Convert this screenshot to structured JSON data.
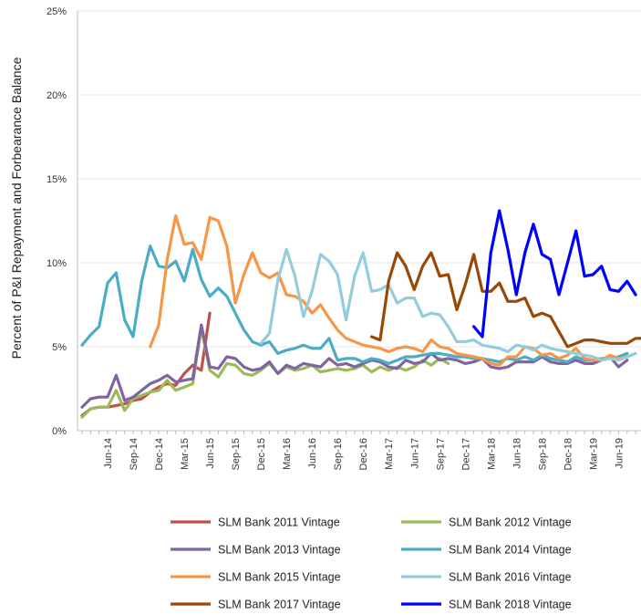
{
  "chart_data": {
    "type": "line",
    "title": "",
    "xlabel": "",
    "ylabel": "Percent of P&I Repayment and Forbearance Balance",
    "ylim": [
      0,
      25
    ],
    "y_ticks": [
      "0%",
      "5%",
      "10%",
      "15%",
      "20%",
      "25%"
    ],
    "x_tick_labels": [
      "Jun-14",
      "Sep-14",
      "Dec-14",
      "Mar-15",
      "Jun-15",
      "Sep-15",
      "Dec-15",
      "Mar-16",
      "Jun-16",
      "Sep-16",
      "Dec-16",
      "Mar-17",
      "Jun-17",
      "Sep-17",
      "Dec-17",
      "Mar-18",
      "Jun-18",
      "Sep-18",
      "Dec-18",
      "Mar-19",
      "Jun-19"
    ],
    "x_range_months": [
      "Mar-14",
      "Aug-19"
    ],
    "grid": true,
    "legend_position": "bottom",
    "series": [
      {
        "name": "SLM Bank 2011 Vintage",
        "color": "#c0504d",
        "start": "Mar-14",
        "values": [
          0.9,
          1.3,
          1.4,
          1.4,
          1.5,
          1.6,
          1.8,
          1.9,
          2.3,
          2.6,
          2.8,
          2.7,
          3.4,
          3.9,
          3.6,
          7.0
        ]
      },
      {
        "name": "SLM Bank 2012 Vintage",
        "color": "#9bbb59",
        "start": "Mar-14",
        "values": [
          0.8,
          1.3,
          1.4,
          1.4,
          2.4,
          1.2,
          1.9,
          2.1,
          2.3,
          2.4,
          3.0,
          2.4,
          2.6,
          2.8,
          6.1,
          3.6,
          3.2,
          4.0,
          3.9,
          3.4,
          3.3,
          3.6,
          4.0,
          3.4,
          3.8,
          3.6,
          3.7,
          3.9,
          3.5,
          3.6,
          3.7,
          3.6,
          3.7,
          3.9,
          3.5,
          3.8,
          3.6,
          3.8,
          3.6,
          3.8,
          4.2,
          3.9,
          4.3,
          4.0
        ]
      },
      {
        "name": "SLM Bank 2013 Vintage",
        "color": "#8064a2",
        "start": "Mar-14",
        "values": [
          1.4,
          1.9,
          2.0,
          2.0,
          3.3,
          1.8,
          2.0,
          2.4,
          2.8,
          3.0,
          3.3,
          2.9,
          3.0,
          3.1,
          6.3,
          3.8,
          3.7,
          4.4,
          4.3,
          3.8,
          3.6,
          3.7,
          4.1,
          3.4,
          3.9,
          3.7,
          4.0,
          3.9,
          3.8,
          4.3,
          3.9,
          4.0,
          3.8,
          4.0,
          4.2,
          4.1,
          3.8,
          3.7,
          4.2,
          4.0,
          4.1,
          4.6,
          4.2,
          4.3,
          4.2,
          4.0,
          4.1,
          4.3,
          3.8,
          3.7,
          3.8,
          4.1,
          4.1,
          4.1,
          4.4,
          4.1,
          4.0,
          4.0,
          4.2,
          4.0,
          4.0,
          4.2,
          4.4,
          3.8,
          4.2
        ]
      },
      {
        "name": "SLM Bank 2014 Vintage",
        "color": "#4bacc6",
        "start": "Mar-14",
        "values": [
          5.1,
          5.7,
          6.2,
          8.8,
          9.4,
          6.6,
          5.6,
          8.9,
          11.0,
          9.8,
          9.7,
          10.1,
          8.9,
          10.8,
          9.0,
          8.0,
          8.5,
          8.0,
          7.0,
          6.0,
          5.3,
          5.1,
          5.3,
          4.6,
          4.8,
          4.9,
          5.1,
          4.9,
          4.9,
          5.5,
          4.2,
          4.3,
          4.3,
          4.1,
          4.3,
          4.2,
          4.0,
          4.2,
          4.4,
          4.4,
          4.5,
          4.6,
          4.6,
          4.5,
          4.4,
          4.4,
          4.3,
          4.3,
          4.2,
          4.1,
          4.3,
          4.2,
          4.4,
          4.2,
          4.5,
          4.3,
          4.2,
          4.1,
          4.4,
          4.2,
          4.2,
          4.3,
          4.3,
          4.4,
          4.6
        ]
      },
      {
        "name": "SLM Bank 2015 Vintage",
        "color": "#f79646",
        "start": "Nov-14",
        "values": [
          5.0,
          6.3,
          10.2,
          12.8,
          11.1,
          11.2,
          10.2,
          12.7,
          12.5,
          11.0,
          7.6,
          9.3,
          10.6,
          9.4,
          9.1,
          9.4,
          8.1,
          8.0,
          7.7,
          7.0,
          7.5,
          6.7,
          6.0,
          5.5,
          5.3,
          5.1,
          5.0,
          4.9,
          4.7,
          4.9,
          5.0,
          4.9,
          4.7,
          5.4,
          5.0,
          4.9,
          4.6,
          4.5,
          4.4,
          4.3,
          4.0,
          3.9,
          4.4,
          4.4,
          5.0,
          4.9,
          4.5,
          4.6,
          4.3,
          4.5,
          4.9,
          4.3,
          4.2,
          4.2,
          4.5,
          4.3,
          4.4
        ]
      },
      {
        "name": "SLM Bank 2016 Vintage",
        "color": "#93cddd",
        "start": "Dec-15",
        "values": [
          5.2,
          5.8,
          9.0,
          10.8,
          9.2,
          6.8,
          8.3,
          10.5,
          10.1,
          9.3,
          6.6,
          9.2,
          10.6,
          8.3,
          8.4,
          8.7,
          7.6,
          7.9,
          7.9,
          6.8,
          7.0,
          6.9,
          6.2,
          5.3,
          5.3,
          5.4,
          5.1,
          5.0,
          4.9,
          4.7,
          5.1,
          5.0,
          4.8,
          5.1,
          4.9,
          4.8,
          4.7,
          4.6,
          4.5,
          4.4,
          4.2,
          4.3,
          4.2,
          4.4,
          4.6
        ]
      },
      {
        "name": "SLM Bank 2017 Vintage",
        "color": "#984807",
        "start": "Jan-17",
        "values": [
          5.6,
          5.4,
          8.9,
          10.6,
          9.8,
          8.4,
          9.8,
          10.6,
          9.2,
          9.3,
          7.2,
          8.7,
          10.5,
          8.3,
          8.3,
          8.8,
          7.7,
          7.7,
          7.9,
          6.8,
          7.0,
          6.8,
          5.9,
          5.0,
          5.2,
          5.4,
          5.4,
          5.3,
          5.2,
          5.2,
          5.2,
          5.5,
          5.5
        ]
      },
      {
        "name": "SLM Bank 2018 Vintage",
        "color": "#0000ff",
        "start": "Jan-18",
        "values": [
          6.2,
          5.6,
          10.6,
          13.1,
          10.8,
          8.1,
          10.6,
          12.3,
          10.5,
          10.2,
          8.1,
          10.0,
          11.9,
          9.2,
          9.3,
          9.8,
          8.4,
          8.3,
          8.9,
          8.1
        ]
      }
    ]
  }
}
